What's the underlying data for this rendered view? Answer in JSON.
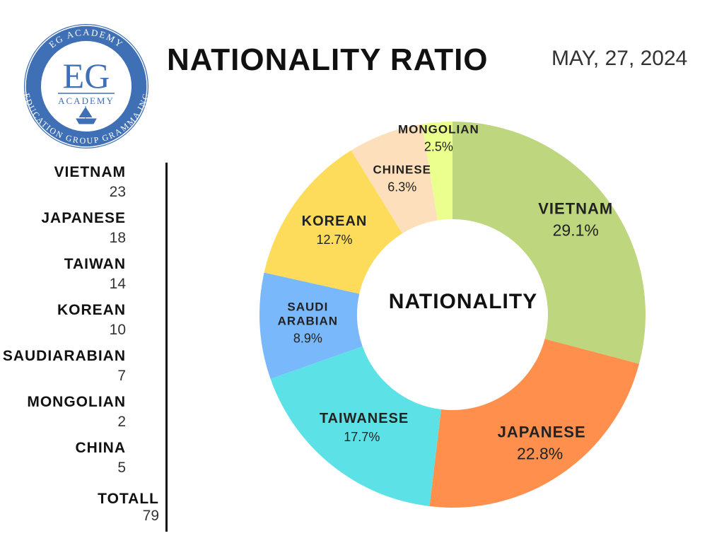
{
  "logo": {
    "ring_top": "EG ACADEMY",
    "mark": "EG",
    "sub": "ACADEMY",
    "ring_bottom": "EDUCATION GROUP GRAMMA INC"
  },
  "header": {
    "title": "NATIONALITY RATIO",
    "date": "MAY, 27, 2024"
  },
  "list": {
    "items": [
      {
        "name": "VIETNAM",
        "count": "23"
      },
      {
        "name": "JAPANESE",
        "count": "18"
      },
      {
        "name": "TAIWAN",
        "count": "14"
      },
      {
        "name": "KOREAN",
        "count": "10"
      },
      {
        "name": "SAUDIARABIAN",
        "count": "7"
      },
      {
        "name": "MONGOLIAN",
        "count": "2"
      },
      {
        "name": "CHINA",
        "count": "5"
      }
    ],
    "total_label": "TOTALL",
    "total": "79"
  },
  "chart_data": {
    "type": "donut",
    "center_label": "NATIONALITY",
    "categories": [
      "VIETNAM",
      "JAPANESE",
      "TAIWANESE",
      "SAUDI ARABIAN",
      "KOREAN",
      "CHINESE",
      "MONGOLIAN"
    ],
    "values": [
      29.1,
      22.8,
      17.7,
      8.9,
      12.7,
      6.3,
      2.5
    ],
    "value_labels": [
      "29.1%",
      "22.8%",
      "17.7%",
      "8.9%",
      "12.7%",
      "6.3%",
      "2.5%"
    ],
    "colors": [
      "#bed67e",
      "#fe8f4c",
      "#5ce1e6",
      "#7ab8fc",
      "#fedc5b",
      "#fde0bb",
      "#ebff8e"
    ]
  }
}
